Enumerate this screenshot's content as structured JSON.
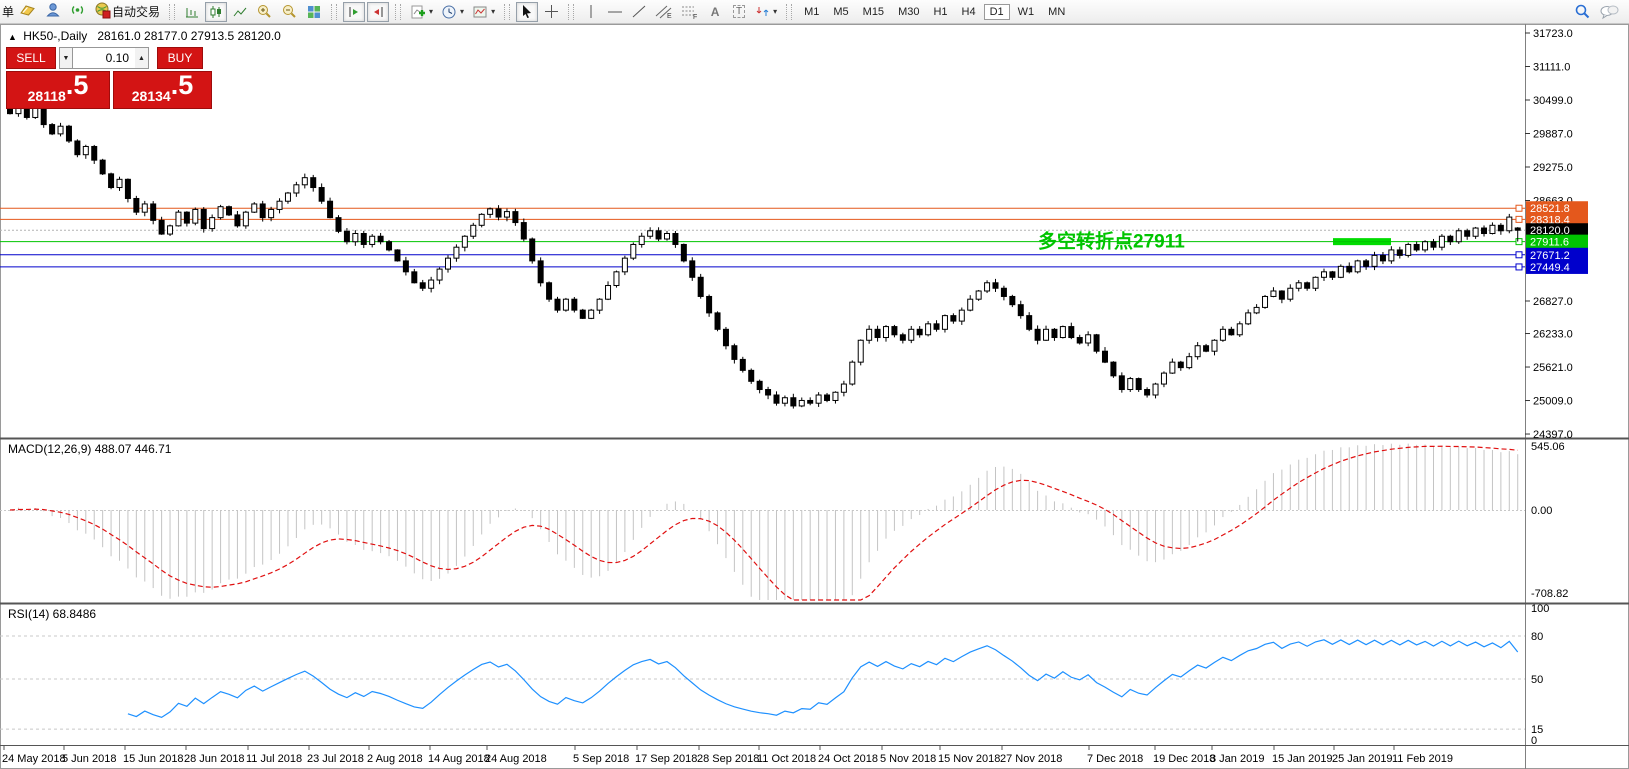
{
  "toolbar": {
    "clipped_item": "单",
    "autotrade": "自动交易",
    "text_tool": "A",
    "label_tool": "T",
    "channel_tool": "E",
    "fibo_tool": "F",
    "timeframes": [
      "M1",
      "M5",
      "M15",
      "M30",
      "H1",
      "H4",
      "D1",
      "W1",
      "MN"
    ],
    "active_timeframe": "D1"
  },
  "chart": {
    "title_symbol": "HK50-,Daily",
    "title_ohlc": "28161.0 28177.0 27913.5 28120.0",
    "trade_panel": {
      "sell": "SELL",
      "buy": "BUY",
      "volume": "0.10",
      "sell_price": "28118",
      "sell_price_frac": ".5",
      "buy_price": "28134",
      "buy_price_frac": ".5",
      "accent_red": "#d31414"
    },
    "annotation_text": "多空转折点27911",
    "annotation_color": "#00c400",
    "price_axis_labels": [
      "31723.0",
      "31111.0",
      "30499.0",
      "29887.0",
      "29275.0",
      "28663.0",
      "26827.0",
      "26233.0",
      "25621.0",
      "25009.0",
      "24397.0"
    ],
    "levels": [
      {
        "label": "28521.8",
        "price": 28521.8,
        "color": "#e4581c",
        "text_color": "#ffffff",
        "style": "solid"
      },
      {
        "label": "28318.4",
        "price": 28318.4,
        "color": "#e4581c",
        "text_color": "#ffffff",
        "style": "solid"
      },
      {
        "label": "28120.0",
        "price": 28120.0,
        "color": "#b4b4b4",
        "label_bg": "#000000",
        "text_color": "#ffffff",
        "style": "dotted"
      },
      {
        "label": "27911.6",
        "price": 27911.6,
        "color": "#00c400",
        "text_color": "#ffffff",
        "style": "solid"
      },
      {
        "label": "27671.2",
        "price": 27671.2,
        "color": "#0000cc",
        "text_color": "#ffffff",
        "style": "solid"
      },
      {
        "label": "27449.4",
        "price": 27449.4,
        "color": "#0000cc",
        "text_color": "#ffffff",
        "style": "solid"
      }
    ],
    "highlight_zone": {
      "price": 27911.6,
      "color": "#00dc00"
    }
  },
  "macd_panel": {
    "label": "MACD(12,26,9) 488.07 446.71",
    "axis_labels": [
      "545.06",
      "0.00",
      "-708.82"
    ]
  },
  "rsi_panel": {
    "label": "RSI(14) 68.8486",
    "axis_labels": [
      "100",
      "80",
      "50",
      "15",
      "0"
    ]
  },
  "time_axis": [
    "24 May 2018",
    "5 Jun 2018",
    "15 Jun 2018",
    "28 Jun 2018",
    "11 Jul 2018",
    "23 Jul 2018",
    "2 Aug 2018",
    "14 Aug 2018",
    "24 Aug 2018",
    "5 Sep 2018",
    "17 Sep 2018",
    "28 Sep 2018",
    "11 Oct 2018",
    "24 Oct 2018",
    "5 Nov 2018",
    "15 Nov 2018",
    "27 Nov 2018",
    "7 Dec 2018",
    "19 Dec 2018",
    "3 Jan 2019",
    "15 Jan 2019",
    "25 Jan 2019",
    "11 Feb 2019"
  ],
  "chart_data": {
    "type": "candlestick",
    "symbol": "HK50-",
    "timeframe": "Daily",
    "title": "HK50-,Daily",
    "last_ohlc": {
      "open": 28161.0,
      "high": 28177.0,
      "low": 27913.5,
      "close": 28120.0
    },
    "bid": 28118.5,
    "ask": 28134.5,
    "y_axis_range": [
      24397.0,
      31723.0
    ],
    "x_range": [
      "24 May 2018",
      "11 Feb 2019"
    ],
    "grid": false,
    "closes": [
      30250,
      30420,
      30180,
      30350,
      30050,
      29880,
      30020,
      29750,
      29500,
      29650,
      29400,
      29150,
      28900,
      29050,
      28700,
      28450,
      28600,
      28300,
      28050,
      28200,
      28450,
      28250,
      28500,
      28150,
      28350,
      28550,
      28400,
      28200,
      28450,
      28600,
      28350,
      28500,
      28650,
      28800,
      28950,
      29080,
      28900,
      28650,
      28350,
      28100,
      27910,
      28060,
      27860,
      28010,
      27910,
      27760,
      27560,
      27360,
      27160,
      27060,
      27210,
      27410,
      27610,
      27810,
      28010,
      28210,
      28410,
      28510,
      28360,
      28460,
      28260,
      27960,
      27560,
      27160,
      26860,
      26660,
      26860,
      26660,
      26510,
      26660,
      26860,
      27110,
      27360,
      27610,
      27860,
      28010,
      28110,
      27960,
      28060,
      27860,
      27560,
      27260,
      26910,
      26610,
      26310,
      26010,
      25760,
      25560,
      25360,
      25210,
      25110,
      24960,
      25060,
      24910,
      25010,
      24960,
      25110,
      25010,
      25160,
      25310,
      25710,
      26110,
      26310,
      26160,
      26360,
      26210,
      26110,
      26310,
      26210,
      26410,
      26310,
      26560,
      26460,
      26660,
      26860,
      27010,
      27160,
      27060,
      26910,
      26760,
      26560,
      26310,
      26110,
      26310,
      26160,
      26360,
      26160,
      26060,
      26210,
      25910,
      25710,
      25460,
      25210,
      25410,
      25210,
      25110,
      25310,
      25510,
      25710,
      25610,
      25810,
      26010,
      25910,
      26110,
      26310,
      26210,
      26410,
      26610,
      26710,
      26910,
      27010,
      26860,
      27060,
      27160,
      27060,
      27260,
      27360,
      27260,
      27460,
      27360,
      27560,
      27460,
      27660,
      27560,
      27760,
      27660,
      27860,
      27760,
      27910,
      27810,
      28010,
      27910,
      28110,
      28010,
      28160,
      28060,
      28210,
      28110,
      28360,
      28120
    ],
    "horizontal_levels": [
      28521.8,
      28318.4,
      28120.0,
      27911.6,
      27671.2,
      27449.4
    ],
    "annotation": {
      "text": "多空转折点27911",
      "price": 27911.6
    },
    "indicators": {
      "macd": {
        "params": [
          12,
          26,
          9
        ],
        "main_last": 488.07,
        "signal_last": 446.71,
        "axis_range": [
          -708.82,
          545.06
        ]
      },
      "rsi": {
        "period": 14,
        "last": 68.8486,
        "levels": [
          80,
          50,
          15
        ],
        "axis_range": [
          0,
          100
        ]
      }
    }
  }
}
